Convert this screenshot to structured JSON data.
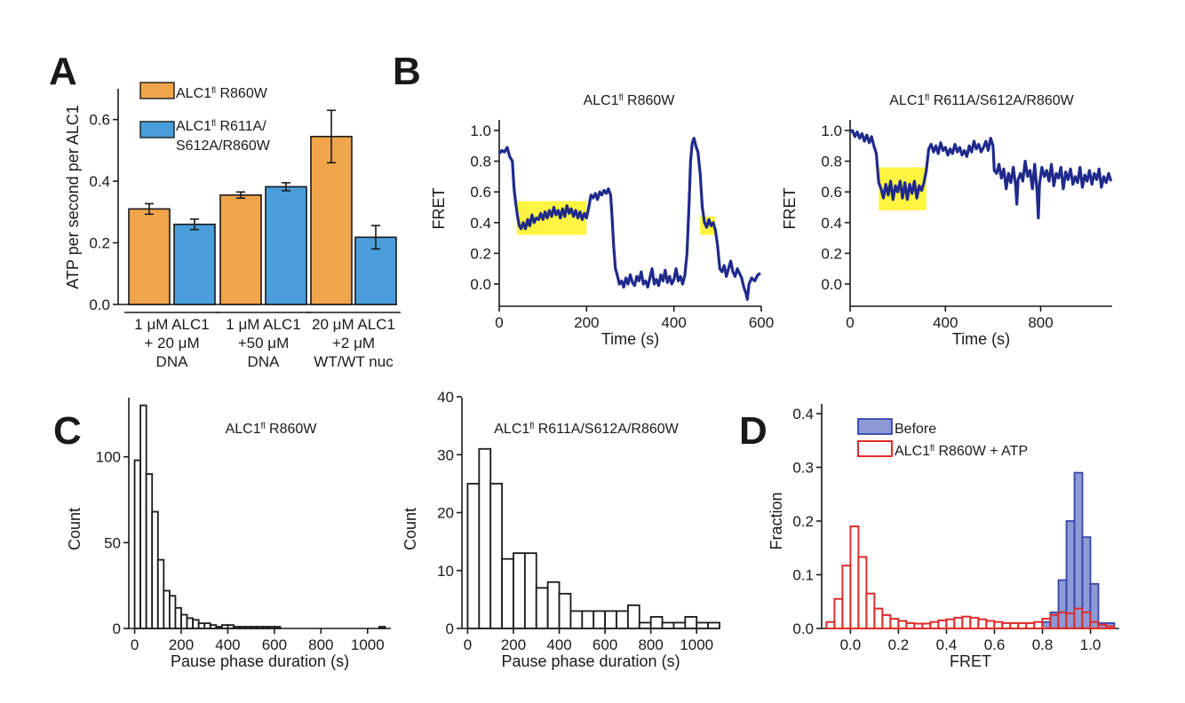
{
  "panels": {
    "A": "A",
    "B": "B",
    "C": "C",
    "D": "D"
  },
  "colors": {
    "orange": "#F0A54B",
    "blue": "#4A9EDB",
    "trace": "#1F2A8C",
    "highlight": "#FFF200",
    "red": "#E12B2B",
    "blue_fill": "#8E9AD6",
    "blue_edge": "#3446B0"
  },
  "chart_data": [
    {
      "id": "A",
      "type": "bar",
      "ylabel": "ATP per second per ALC1",
      "ylim": [
        0,
        0.7
      ],
      "yticks": [
        "0.0",
        "0.2",
        "0.4",
        "0.6"
      ],
      "legend": [
        {
          "lines": [
            "ALC1",
            "fl",
            " R860W"
          ]
        },
        {
          "lines": [
            "ALC1",
            "fl",
            " R611A/"
          ],
          "line2": "S612A/R860W"
        }
      ],
      "groups": [
        {
          "lines": [
            "1 μM ALC1",
            "+ 20 μM",
            "DNA"
          ]
        },
        {
          "lines": [
            "1 μM ALC1",
            "+50 μM",
            "DNA"
          ]
        },
        {
          "lines": [
            "20 μM ALC1",
            "+2 μM",
            "WT/WT nuc"
          ]
        }
      ],
      "series": [
        {
          "name": "ALC1fl R860W",
          "values": [
            0.31,
            0.355,
            0.545
          ],
          "errors": [
            0.017,
            0.01,
            0.085
          ]
        },
        {
          "name": "ALC1fl R611A/S612A/R860W",
          "values": [
            0.26,
            0.382,
            0.218
          ],
          "errors": [
            0.017,
            0.013,
            0.038
          ]
        }
      ]
    },
    {
      "id": "B1",
      "type": "line",
      "title": "ALC1",
      "title_sup": "fl",
      "title_rest": " R860W",
      "xlabel": "Time (s)",
      "ylabel": "FRET",
      "xlim": [
        0,
        600
      ],
      "ylim": [
        -0.1,
        1.05
      ],
      "xticks": [
        "0",
        "200",
        "400",
        "600"
      ],
      "yticks": [
        "0.0",
        "0.2",
        "0.4",
        "0.6",
        "0.8",
        "1.0"
      ],
      "highlights": [
        [
          40,
          200,
          0.32,
          0.54
        ],
        [
          460,
          495,
          0.32,
          0.44
        ]
      ],
      "points": [
        [
          0,
          0.85
        ],
        [
          6,
          0.87
        ],
        [
          12,
          0.86
        ],
        [
          18,
          0.89
        ],
        [
          24,
          0.83
        ],
        [
          30,
          0.8
        ],
        [
          34,
          0.62
        ],
        [
          38,
          0.52
        ],
        [
          42,
          0.44
        ],
        [
          46,
          0.38
        ],
        [
          50,
          0.36
        ],
        [
          55,
          0.4
        ],
        [
          60,
          0.36
        ],
        [
          65,
          0.42
        ],
        [
          70,
          0.38
        ],
        [
          75,
          0.45
        ],
        [
          80,
          0.4
        ],
        [
          85,
          0.43
        ],
        [
          90,
          0.42
        ],
        [
          95,
          0.46
        ],
        [
          100,
          0.42
        ],
        [
          105,
          0.47
        ],
        [
          110,
          0.43
        ],
        [
          115,
          0.48
        ],
        [
          120,
          0.44
        ],
        [
          125,
          0.5
        ],
        [
          130,
          0.45
        ],
        [
          135,
          0.48
        ],
        [
          140,
          0.43
        ],
        [
          145,
          0.49
        ],
        [
          150,
          0.44
        ],
        [
          155,
          0.51
        ],
        [
          160,
          0.46
        ],
        [
          165,
          0.49
        ],
        [
          170,
          0.44
        ],
        [
          175,
          0.48
        ],
        [
          180,
          0.43
        ],
        [
          185,
          0.47
        ],
        [
          190,
          0.42
        ],
        [
          195,
          0.46
        ],
        [
          200,
          0.43
        ],
        [
          205,
          0.5
        ],
        [
          210,
          0.58
        ],
        [
          215,
          0.56
        ],
        [
          220,
          0.59
        ],
        [
          225,
          0.55
        ],
        [
          230,
          0.6
        ],
        [
          235,
          0.58
        ],
        [
          240,
          0.61
        ],
        [
          245,
          0.59
        ],
        [
          250,
          0.62
        ],
        [
          255,
          0.58
        ],
        [
          258,
          0.45
        ],
        [
          262,
          0.25
        ],
        [
          266,
          0.1
        ],
        [
          270,
          0.06
        ],
        [
          275,
          0.0
        ],
        [
          280,
          0.02
        ],
        [
          285,
          -0.02
        ],
        [
          290,
          0.04
        ],
        [
          295,
          0.0
        ],
        [
          300,
          0.06
        ],
        [
          305,
          0.01
        ],
        [
          310,
          -0.01
        ],
        [
          315,
          0.05
        ],
        [
          320,
          0.02
        ],
        [
          325,
          0.08
        ],
        [
          330,
          0.0
        ],
        [
          335,
          0.02
        ],
        [
          340,
          -0.02
        ],
        [
          345,
          0.04
        ],
        [
          350,
          0.1
        ],
        [
          355,
          0.0
        ],
        [
          360,
          0.03
        ],
        [
          365,
          -0.01
        ],
        [
          370,
          0.06
        ],
        [
          375,
          0.02
        ],
        [
          380,
          0.09
        ],
        [
          385,
          0.01
        ],
        [
          390,
          0.05
        ],
        [
          395,
          0.0
        ],
        [
          400,
          0.03
        ],
        [
          405,
          0.1
        ],
        [
          410,
          0.02
        ],
        [
          415,
          0.05
        ],
        [
          420,
          0.0
        ],
        [
          425,
          0.06
        ],
        [
          430,
          0.2
        ],
        [
          435,
          0.55
        ],
        [
          438,
          0.8
        ],
        [
          442,
          0.92
        ],
        [
          446,
          0.95
        ],
        [
          450,
          0.9
        ],
        [
          455,
          0.86
        ],
        [
          460,
          0.72
        ],
        [
          465,
          0.5
        ],
        [
          470,
          0.4
        ],
        [
          475,
          0.37
        ],
        [
          480,
          0.42
        ],
        [
          485,
          0.38
        ],
        [
          490,
          0.4
        ],
        [
          495,
          0.35
        ],
        [
          500,
          0.25
        ],
        [
          505,
          0.1
        ],
        [
          510,
          0.08
        ],
        [
          515,
          0.12
        ],
        [
          520,
          0.05
        ],
        [
          525,
          0.1
        ],
        [
          530,
          0.15
        ],
        [
          535,
          0.08
        ],
        [
          540,
          0.05
        ],
        [
          545,
          0.1
        ],
        [
          550,
          0.07
        ],
        [
          555,
          0.04
        ],
        [
          560,
          -0.02
        ],
        [
          565,
          -0.06
        ],
        [
          568,
          -0.1
        ],
        [
          572,
          0.0
        ],
        [
          578,
          0.04
        ],
        [
          585,
          0.02
        ],
        [
          592,
          0.06
        ],
        [
          598,
          0.07
        ]
      ]
    },
    {
      "id": "B2",
      "type": "line",
      "title": "ALC1",
      "title_sup": "fl",
      "title_rest": " R611A/S612A/R860W",
      "xlabel": "Time (s)",
      "ylabel": "FRET",
      "xlim": [
        0,
        1100
      ],
      "ylim": [
        -0.1,
        1.05
      ],
      "xticks": [
        "0",
        "400",
        "800"
      ],
      "yticks": [
        "0.0",
        "0.2",
        "0.4",
        "0.6",
        "0.8",
        "1.0"
      ],
      "highlights": [
        [
          120,
          320,
          0.48,
          0.76
        ]
      ],
      "points": [
        [
          0,
          0.99
        ],
        [
          10,
          1.0
        ],
        [
          20,
          0.96
        ],
        [
          30,
          0.99
        ],
        [
          40,
          0.95
        ],
        [
          50,
          0.98
        ],
        [
          60,
          0.93
        ],
        [
          70,
          0.97
        ],
        [
          80,
          0.92
        ],
        [
          90,
          0.96
        ],
        [
          100,
          0.9
        ],
        [
          110,
          0.85
        ],
        [
          120,
          0.66
        ],
        [
          130,
          0.62
        ],
        [
          140,
          0.56
        ],
        [
          150,
          0.65
        ],
        [
          160,
          0.58
        ],
        [
          170,
          0.67
        ],
        [
          180,
          0.55
        ],
        [
          190,
          0.64
        ],
        [
          200,
          0.6
        ],
        [
          210,
          0.67
        ],
        [
          220,
          0.56
        ],
        [
          230,
          0.66
        ],
        [
          240,
          0.55
        ],
        [
          250,
          0.65
        ],
        [
          260,
          0.59
        ],
        [
          270,
          0.67
        ],
        [
          280,
          0.56
        ],
        [
          290,
          0.64
        ],
        [
          300,
          0.61
        ],
        [
          310,
          0.66
        ],
        [
          320,
          0.74
        ],
        [
          330,
          0.88
        ],
        [
          340,
          0.91
        ],
        [
          350,
          0.86
        ],
        [
          360,
          0.9
        ],
        [
          370,
          0.85
        ],
        [
          380,
          0.92
        ],
        [
          390,
          0.87
        ],
        [
          400,
          0.89
        ],
        [
          410,
          0.84
        ],
        [
          420,
          0.88
        ],
        [
          430,
          0.85
        ],
        [
          440,
          0.91
        ],
        [
          450,
          0.86
        ],
        [
          460,
          0.89
        ],
        [
          470,
          0.84
        ],
        [
          480,
          0.87
        ],
        [
          490,
          0.83
        ],
        [
          500,
          0.9
        ],
        [
          510,
          0.86
        ],
        [
          520,
          0.93
        ],
        [
          530,
          0.88
        ],
        [
          540,
          0.91
        ],
        [
          550,
          0.86
        ],
        [
          560,
          0.89
        ],
        [
          570,
          0.93
        ],
        [
          580,
          0.87
        ],
        [
          590,
          0.95
        ],
        [
          600,
          0.9
        ],
        [
          605,
          0.74
        ],
        [
          615,
          0.72
        ],
        [
          625,
          0.78
        ],
        [
          635,
          0.69
        ],
        [
          645,
          0.75
        ],
        [
          655,
          0.62
        ],
        [
          665,
          0.72
        ],
        [
          675,
          0.66
        ],
        [
          685,
          0.76
        ],
        [
          695,
          0.64
        ],
        [
          700,
          0.52
        ],
        [
          705,
          0.68
        ],
        [
          715,
          0.72
        ],
        [
          725,
          0.67
        ],
        [
          735,
          0.8
        ],
        [
          745,
          0.7
        ],
        [
          755,
          0.74
        ],
        [
          765,
          0.62
        ],
        [
          775,
          0.78
        ],
        [
          785,
          0.6
        ],
        [
          790,
          0.43
        ],
        [
          795,
          0.65
        ],
        [
          805,
          0.76
        ],
        [
          815,
          0.7
        ],
        [
          825,
          0.74
        ],
        [
          835,
          0.67
        ],
        [
          845,
          0.78
        ],
        [
          855,
          0.64
        ],
        [
          865,
          0.72
        ],
        [
          875,
          0.69
        ],
        [
          885,
          0.76
        ],
        [
          895,
          0.62
        ],
        [
          905,
          0.73
        ],
        [
          915,
          0.68
        ],
        [
          925,
          0.75
        ],
        [
          935,
          0.65
        ],
        [
          945,
          0.7
        ],
        [
          955,
          0.66
        ],
        [
          965,
          0.76
        ],
        [
          975,
          0.63
        ],
        [
          985,
          0.71
        ],
        [
          995,
          0.67
        ],
        [
          1005,
          0.74
        ],
        [
          1015,
          0.65
        ],
        [
          1025,
          0.72
        ],
        [
          1035,
          0.68
        ],
        [
          1045,
          0.75
        ],
        [
          1055,
          0.63
        ],
        [
          1065,
          0.7
        ],
        [
          1075,
          0.66
        ],
        [
          1085,
          0.72
        ],
        [
          1095,
          0.67
        ]
      ]
    },
    {
      "id": "C1",
      "type": "bar",
      "title": "ALC1",
      "title_sup": "fl",
      "title_rest": " R860W",
      "xlabel": "Pause phase duration (s)",
      "ylabel": "Count",
      "xlim": [
        -25,
        1100
      ],
      "ylim": [
        0,
        135
      ],
      "xticks": [
        "0",
        "200",
        "400",
        "600",
        "800",
        "1000"
      ],
      "yticks": [
        "0",
        "50",
        "100"
      ],
      "bin_width": 25,
      "bin_start": 0,
      "values": [
        98,
        130,
        90,
        68,
        40,
        22,
        19,
        12,
        8,
        6,
        5,
        3,
        3,
        2,
        1,
        2,
        2,
        1,
        1,
        1,
        1,
        1,
        1,
        1,
        1,
        0,
        0,
        0,
        0,
        0,
        0,
        0,
        0,
        0,
        0,
        0,
        0,
        0,
        0,
        0,
        0,
        0,
        1
      ]
    },
    {
      "id": "C2",
      "type": "bar",
      "title": "ALC1",
      "title_sup": "fl",
      "title_rest": " R611A/S612A/R860W",
      "xlabel": "Pause phase duration (s)",
      "ylabel": "Count",
      "xlim": [
        -25,
        1100
      ],
      "ylim": [
        0,
        40
      ],
      "xticks": [
        "0",
        "200",
        "400",
        "600",
        "800",
        "1000"
      ],
      "yticks": [
        "0",
        "10",
        "20",
        "30",
        "40"
      ],
      "bin_width": 50,
      "bin_start": 0,
      "values": [
        25,
        31,
        25,
        12,
        13,
        13,
        7,
        8,
        6,
        3,
        3,
        3,
        3,
        3,
        4,
        1,
        2,
        1,
        1,
        2,
        1,
        1
      ]
    },
    {
      "id": "D",
      "type": "bar",
      "xlabel": "FRET",
      "ylabel": "Fraction",
      "xlim": [
        -0.12,
        1.12
      ],
      "ylim": [
        0,
        0.4
      ],
      "xticks": [
        "0.0",
        "0.2",
        "0.4",
        "0.6",
        "0.8",
        "1.0"
      ],
      "yticks": [
        "0.0",
        "0.1",
        "0.2",
        "0.3",
        "0.4"
      ],
      "bin_width": 0.0333,
      "legend": [
        {
          "name": "Before",
          "label": "Before"
        },
        {
          "name": "ALC1fl R860W + ATP",
          "label": "ALC1",
          "sup": "fl",
          "rest": " R860W + ATP"
        }
      ],
      "series": [
        {
          "name": "Before",
          "bin_start": 0.8,
          "values": [
            0.012,
            0.03,
            0.09,
            0.2,
            0.29,
            0.17,
            0.083,
            0.01,
            0.01
          ]
        },
        {
          "name": "ALC1fl R860W + ATP",
          "bin_start": -0.1,
          "values": [
            0.012,
            0.055,
            0.117,
            0.19,
            0.133,
            0.065,
            0.037,
            0.025,
            0.018,
            0.014,
            0.01,
            0.009,
            0.009,
            0.012,
            0.015,
            0.017,
            0.02,
            0.022,
            0.02,
            0.017,
            0.014,
            0.012,
            0.01,
            0.01,
            0.01,
            0.01,
            0.012,
            0.018,
            0.025,
            0.03,
            0.028,
            0.037,
            0.03,
            0.012,
            0.007,
            0.004
          ]
        }
      ]
    }
  ]
}
